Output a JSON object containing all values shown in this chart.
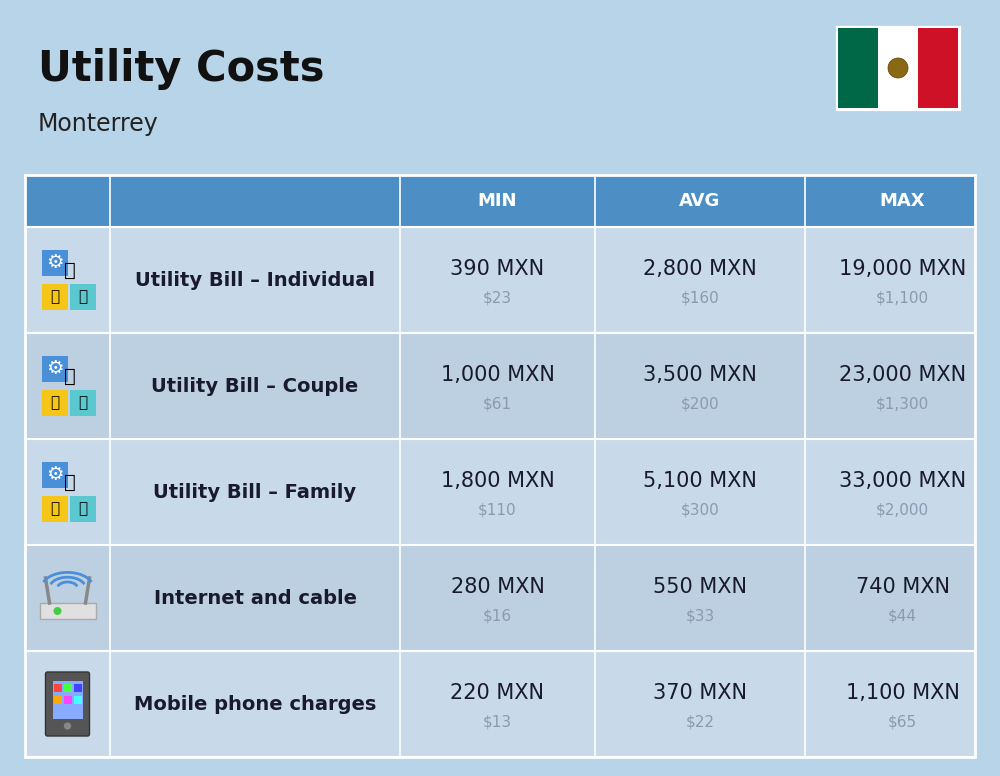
{
  "title": "Utility Costs",
  "subtitle": "Monterrey",
  "background_color": "#b8d4e8",
  "header_bg_color": "#4d8fc4",
  "header_text_color": "#ffffff",
  "row_bg_even": "#c8daea",
  "row_bg_odd": "#bdd0e2",
  "sep_color": "#ffffff",
  "columns": [
    "",
    "",
    "MIN",
    "AVG",
    "MAX"
  ],
  "rows": [
    {
      "label": "Utility Bill – Individual",
      "min_mxn": "390 MXN",
      "min_usd": "$23",
      "avg_mxn": "2,800 MXN",
      "avg_usd": "$160",
      "max_mxn": "19,000 MXN",
      "max_usd": "$1,100"
    },
    {
      "label": "Utility Bill – Couple",
      "min_mxn": "1,000 MXN",
      "min_usd": "$61",
      "avg_mxn": "3,500 MXN",
      "avg_usd": "$200",
      "max_mxn": "23,000 MXN",
      "max_usd": "$1,300"
    },
    {
      "label": "Utility Bill – Family",
      "min_mxn": "1,800 MXN",
      "min_usd": "$110",
      "avg_mxn": "5,100 MXN",
      "avg_usd": "$300",
      "max_mxn": "33,000 MXN",
      "max_usd": "$2,000"
    },
    {
      "label": "Internet and cable",
      "min_mxn": "280 MXN",
      "min_usd": "$16",
      "avg_mxn": "550 MXN",
      "avg_usd": "$33",
      "max_mxn": "740 MXN",
      "max_usd": "$44"
    },
    {
      "label": "Mobile phone charges",
      "min_mxn": "220 MXN",
      "min_usd": "$13",
      "avg_mxn": "370 MXN",
      "avg_usd": "$22",
      "max_mxn": "1,100 MXN",
      "max_usd": "$65"
    }
  ],
  "title_fontsize": 30,
  "subtitle_fontsize": 17,
  "header_fontsize": 13,
  "cell_mxn_fontsize": 15,
  "cell_usd_fontsize": 11,
  "label_fontsize": 14,
  "usd_color": "#8a9ab0",
  "cell_text_color": "#1a1a2e",
  "flag_green": "#006847",
  "flag_white": "#ffffff",
  "flag_red": "#CE1126"
}
